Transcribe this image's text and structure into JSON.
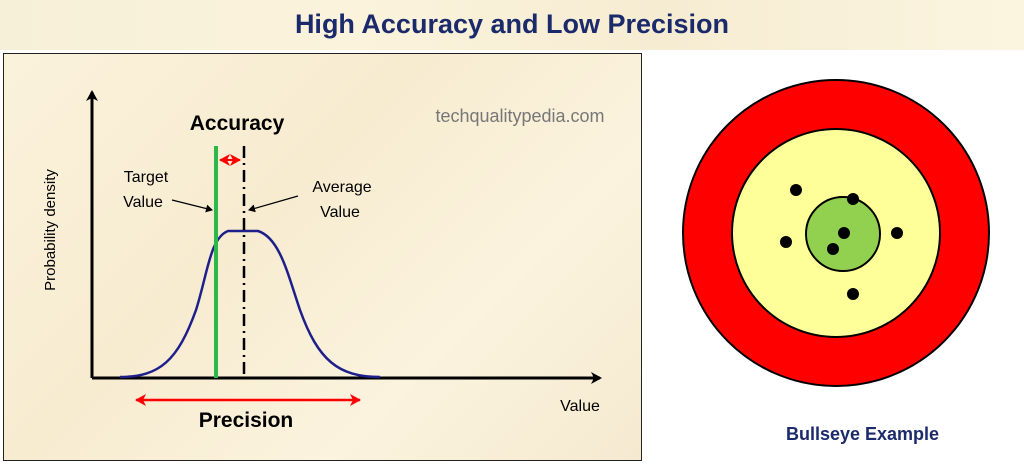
{
  "title": "High Accuracy and Low Precision",
  "diagram": {
    "accuracy_label": "Accuracy",
    "watermark": "techqualitypedia.com",
    "y_axis_label": "Probability density",
    "x_axis_label": "Value",
    "target_label_line1": "Target",
    "target_label_line2": "Value",
    "average_label_line1": "Average",
    "average_label_line2": "Value",
    "precision_label": "Precision"
  },
  "bullseye": {
    "label": "Bullseye Example",
    "ring_colors": [
      "#ff0000",
      "#ffff99",
      "#92d050"
    ],
    "dot_count": 7
  },
  "colors": {
    "title": "#1b2a6b",
    "curve": "#1f1f8c",
    "target_line": "#2db84a",
    "arrow": "#ff0000"
  }
}
